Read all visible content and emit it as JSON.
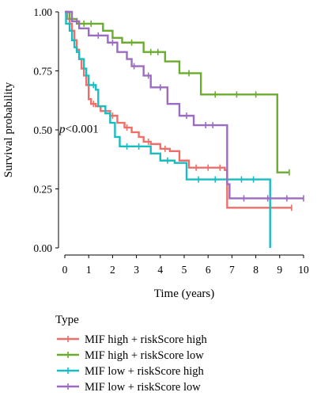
{
  "chart_data": {
    "type": "line",
    "xlabel": "Time (years)",
    "ylabel": "Survival probability",
    "xlim": [
      0,
      10
    ],
    "ylim": [
      0,
      1
    ],
    "xticks": [
      0,
      1,
      2,
      3,
      4,
      5,
      6,
      7,
      8,
      9,
      10
    ],
    "yticks": [
      "0.00",
      "0.25",
      "0.50",
      "0.75",
      "1.00"
    ],
    "yticks_values": [
      0,
      0.25,
      0.5,
      0.75,
      1.0
    ],
    "grid": false,
    "annotation": {
      "italic": "p",
      "rest": "<0.001",
      "x": 0.0,
      "y": 0.505
    },
    "legend": {
      "title": "Type",
      "placement": "bottom-left"
    },
    "series": [
      {
        "name": "MIF high + riskScore high",
        "color": "#ee6f6a",
        "steps": [
          [
            0,
            1.0
          ],
          [
            0.1,
            0.97
          ],
          [
            0.2,
            0.95
          ],
          [
            0.3,
            0.92
          ],
          [
            0.4,
            0.88
          ],
          [
            0.5,
            0.84
          ],
          [
            0.6,
            0.8
          ],
          [
            0.7,
            0.76
          ],
          [
            0.8,
            0.73
          ],
          [
            0.9,
            0.69
          ],
          [
            1.0,
            0.63
          ],
          [
            1.1,
            0.61
          ],
          [
            1.3,
            0.6
          ],
          [
            1.5,
            0.58
          ],
          [
            1.9,
            0.56
          ],
          [
            2.2,
            0.53
          ],
          [
            2.5,
            0.51
          ],
          [
            2.8,
            0.49
          ],
          [
            3.1,
            0.47
          ],
          [
            3.3,
            0.45
          ],
          [
            3.6,
            0.44
          ],
          [
            4.0,
            0.42
          ],
          [
            4.4,
            0.41
          ],
          [
            4.8,
            0.37
          ],
          [
            5.2,
            0.34
          ],
          [
            6.7,
            0.33
          ],
          [
            6.8,
            0.17
          ],
          [
            9.5,
            0.17
          ]
        ],
        "censor_x": [
          1.2,
          2.0,
          2.6,
          3.5,
          4.2,
          5.5,
          6.0,
          6.5,
          9.5
        ]
      },
      {
        "name": "MIF high + riskScore low",
        "color": "#6aac2c",
        "steps": [
          [
            0,
            1.0
          ],
          [
            0.2,
            0.97
          ],
          [
            0.5,
            0.95
          ],
          [
            1.2,
            0.95
          ],
          [
            1.6,
            0.92
          ],
          [
            2.0,
            0.89
          ],
          [
            2.4,
            0.87
          ],
          [
            3.3,
            0.83
          ],
          [
            4.2,
            0.79
          ],
          [
            4.8,
            0.74
          ],
          [
            5.7,
            0.65
          ],
          [
            8.9,
            0.32
          ],
          [
            9.4,
            0.32
          ]
        ],
        "censor_x": [
          0.8,
          1.1,
          2.8,
          3.6,
          3.9,
          5.2,
          6.3,
          7.2,
          8.0,
          9.4
        ]
      },
      {
        "name": "MIF low + riskScore high",
        "color": "#18bdc2",
        "steps": [
          [
            0,
            1.0
          ],
          [
            0.05,
            0.95
          ],
          [
            0.2,
            0.92
          ],
          [
            0.3,
            0.88
          ],
          [
            0.4,
            0.85
          ],
          [
            0.5,
            0.83
          ],
          [
            0.6,
            0.8
          ],
          [
            0.8,
            0.76
          ],
          [
            0.9,
            0.73
          ],
          [
            1.0,
            0.69
          ],
          [
            1.3,
            0.67
          ],
          [
            1.4,
            0.6
          ],
          [
            1.7,
            0.57
          ],
          [
            1.9,
            0.53
          ],
          [
            2.1,
            0.47
          ],
          [
            2.3,
            0.43
          ],
          [
            3.6,
            0.4
          ],
          [
            4.0,
            0.37
          ],
          [
            4.6,
            0.36
          ],
          [
            5.1,
            0.29
          ],
          [
            6.8,
            0.29
          ],
          [
            8.6,
            0.0
          ]
        ],
        "censor_x": [
          1.2,
          2.6,
          3.1,
          4.3,
          5.6,
          6.3,
          7.4,
          7.9
        ]
      },
      {
        "name": "MIF low + riskScore low",
        "color": "#9b6cc1",
        "steps": [
          [
            0,
            1.0
          ],
          [
            0.3,
            0.96
          ],
          [
            0.6,
            0.93
          ],
          [
            1.0,
            0.9
          ],
          [
            1.8,
            0.87
          ],
          [
            2.2,
            0.83
          ],
          [
            2.6,
            0.8
          ],
          [
            2.8,
            0.77
          ],
          [
            3.3,
            0.73
          ],
          [
            3.6,
            0.68
          ],
          [
            4.3,
            0.61
          ],
          [
            4.8,
            0.56
          ],
          [
            5.4,
            0.52
          ],
          [
            6.5,
            0.52
          ],
          [
            6.8,
            0.27
          ],
          [
            6.9,
            0.21
          ],
          [
            10.0,
            0.21
          ]
        ],
        "censor_x": [
          0.5,
          1.4,
          2.0,
          2.9,
          3.5,
          4.0,
          5.1,
          5.9,
          6.2,
          7.5,
          8.5,
          9.3,
          10.0
        ]
      }
    ]
  }
}
